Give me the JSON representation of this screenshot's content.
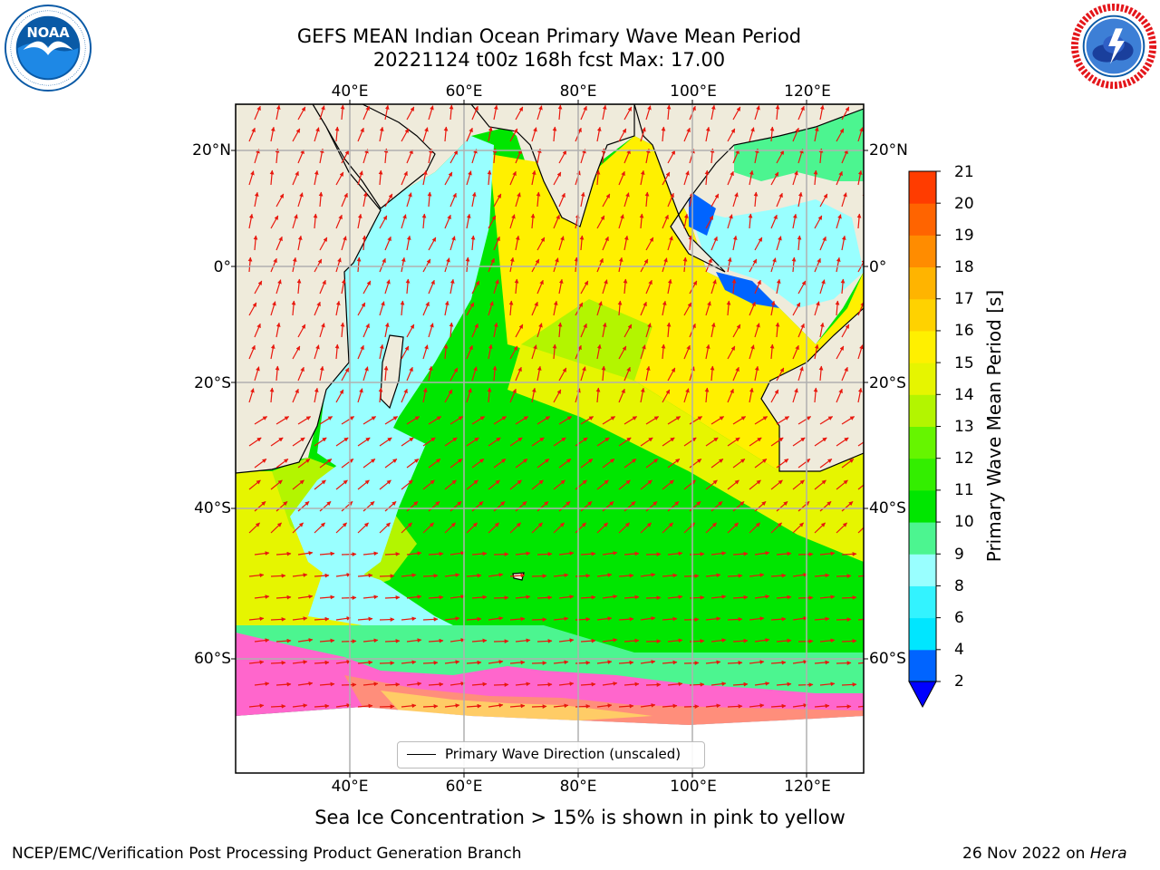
{
  "title": {
    "line1": "GEFS MEAN Indian Ocean Primary Wave Mean Period",
    "line2": "20221124 t00z 168h fcst   Max: 17.00"
  },
  "logos": {
    "left": {
      "text": "NOAA",
      "ring_text": "NATIONAL OCEANIC AND ATMOSPHERIC ADMINISTRATION · U.S. DEPARTMENT OF COMMERCE",
      "icon": "noaa-seagull-icon",
      "color": "#0a5aa6"
    },
    "right": {
      "ring_text": "NATIONAL WEATHER SERVICE",
      "icon": "nws-cloud-lightning-icon",
      "color": "#e4161b"
    }
  },
  "map": {
    "lon_range": [
      20,
      130
    ],
    "lat_range": [
      -74,
      28
    ],
    "lon_ticks": [
      "40°E",
      "60°E",
      "80°E",
      "100°E",
      "120°E"
    ],
    "lat_ticks": [
      "20°N",
      "0°",
      "20°S",
      "40°S",
      "60°S"
    ],
    "land_color": "#efebdb",
    "arrow_color": "#e8180e",
    "grid": true
  },
  "legend": {
    "label": "Primary Wave Direction (unscaled)",
    "position": "lower-center"
  },
  "colorbar": {
    "label": "Primary Wave Mean Period [s]",
    "ticks": [
      "2",
      "4",
      "6",
      "8",
      "9",
      "10",
      "11",
      "12",
      "13",
      "14",
      "15",
      "16",
      "17",
      "18",
      "19",
      "20",
      "21"
    ],
    "colors": [
      "#0064ff",
      "#00e6ff",
      "#33f3ff",
      "#99ffff",
      "#4cf590",
      "#00e600",
      "#33ee00",
      "#66f500",
      "#b3f500",
      "#e6f500",
      "#fff000",
      "#ffd200",
      "#ffb400",
      "#ff8c00",
      "#ff6400",
      "#ff3c00",
      "#ff0000"
    ],
    "extend": "min",
    "extend_color": "#0000ff"
  },
  "caption": "Sea Ice Concentration > 15% is shown in pink to yellow",
  "footer": {
    "left": "NCEP/EMC/Verification Post Processing Product Generation Branch",
    "right_prefix": "26 Nov 2022 on ",
    "right_italic": "Hera"
  }
}
